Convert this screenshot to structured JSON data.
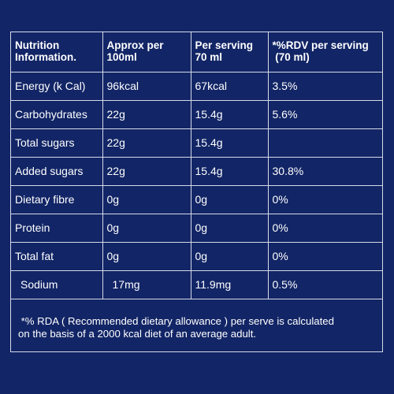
{
  "table": {
    "headers": [
      [
        "Nutrition",
        "Information."
      ],
      [
        "Approx per",
        "100ml"
      ],
      [
        "Per serving",
        "70 ml"
      ],
      [
        "*%RDV per serving",
        " (70 ml)"
      ]
    ],
    "rows": [
      [
        "Energy (k Cal)",
        "96kcal",
        "67kcal",
        "3.5%"
      ],
      [
        "Carbohydrates",
        "22g",
        "15.4g",
        "5.6%"
      ],
      [
        "Total sugars",
        "22g",
        "15.4g",
        ""
      ],
      [
        "Added sugars",
        "22g",
        "15.4g",
        "30.8%"
      ],
      [
        "Dietary fibre",
        "0g",
        "0g",
        "0%"
      ],
      [
        "Protein",
        "0g",
        "0g",
        "0%"
      ],
      [
        "Total fat",
        "0g",
        "0g",
        "0%"
      ],
      [
        "Sodium",
        "17mg",
        "11.9mg",
        "0.5%"
      ]
    ]
  },
  "footnote": {
    "line1": " *% RDA ( Recommended dietary allowance ) per serve is calculated",
    "line2": "on the basis of a 2000 kcal diet of an average adult."
  }
}
